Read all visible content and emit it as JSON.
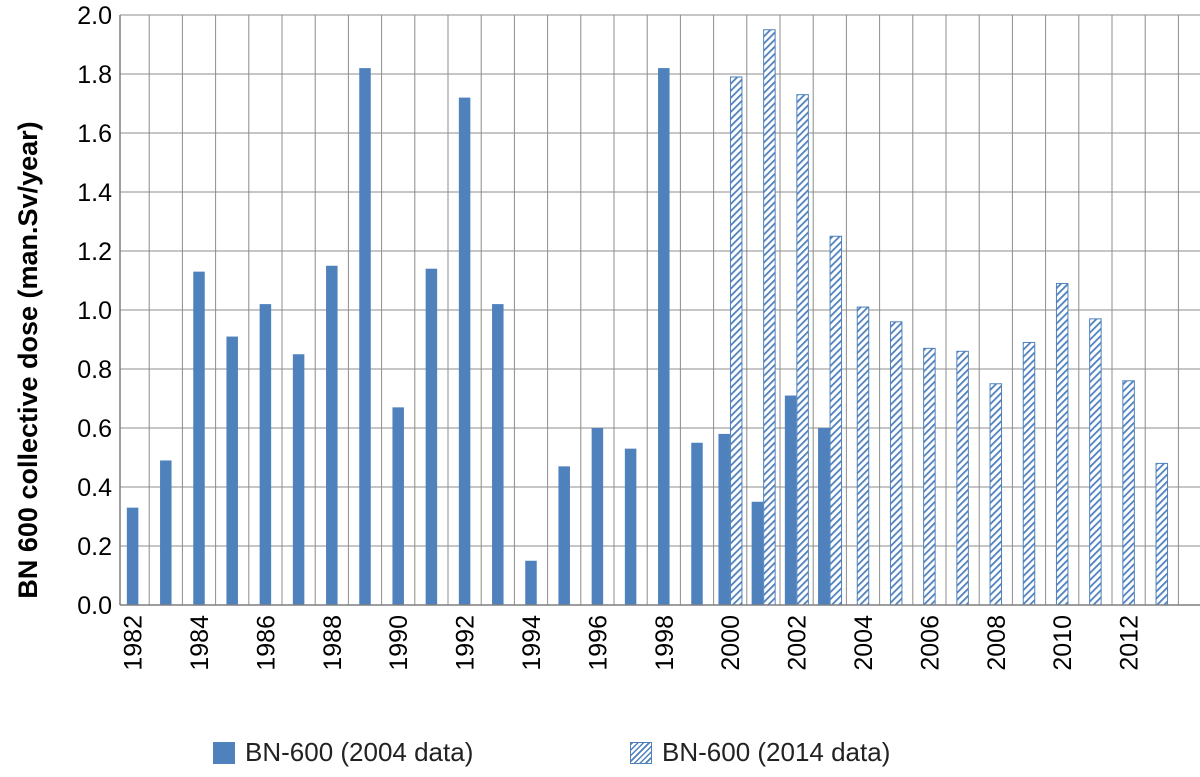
{
  "chart_data": {
    "type": "bar",
    "ylabel": "BN 600 collective dose (man.Sv/year)",
    "ylim": [
      0,
      2.0
    ],
    "yticks": [
      "0.0",
      "0.2",
      "0.4",
      "0.6",
      "0.8",
      "1.0",
      "1.2",
      "1.4",
      "1.6",
      "1.8",
      "2.0"
    ],
    "grid": true,
    "legend_position": "bottom",
    "categories": [
      1982,
      1983,
      1984,
      1985,
      1986,
      1987,
      1988,
      1989,
      1990,
      1991,
      1992,
      1993,
      1994,
      1995,
      1996,
      1997,
      1998,
      1999,
      2000,
      2001,
      2002,
      2003,
      2004,
      2005,
      2006,
      2007,
      2008,
      2009,
      2010,
      2011,
      2012,
      2013
    ],
    "xtick_labels": [
      "1982",
      "1984",
      "1986",
      "1988",
      "1990",
      "1992",
      "1994",
      "1996",
      "1998",
      "2000",
      "2002",
      "2004",
      "2006",
      "2008",
      "2010",
      "2012"
    ],
    "series": [
      {
        "name": "BN-600 (2004 data)",
        "color": "#4f81bd",
        "fill": "solid",
        "values": [
          0.33,
          0.49,
          1.13,
          0.91,
          1.02,
          0.85,
          1.15,
          1.82,
          0.67,
          1.14,
          1.72,
          1.02,
          0.15,
          0.47,
          0.6,
          0.53,
          1.82,
          0.55,
          0.58,
          0.35,
          0.71,
          0.6,
          null,
          null,
          null,
          null,
          null,
          null,
          null,
          null,
          null,
          null
        ]
      },
      {
        "name": "BN-600 (2014 data)",
        "color": "#4f81bd",
        "fill": "hatched",
        "values": [
          null,
          null,
          null,
          null,
          null,
          null,
          null,
          null,
          null,
          null,
          null,
          null,
          null,
          null,
          null,
          null,
          null,
          null,
          1.79,
          1.95,
          1.73,
          1.25,
          1.01,
          0.96,
          0.87,
          0.86,
          0.75,
          0.89,
          1.09,
          0.97,
          0.76,
          0.48
        ]
      }
    ]
  }
}
